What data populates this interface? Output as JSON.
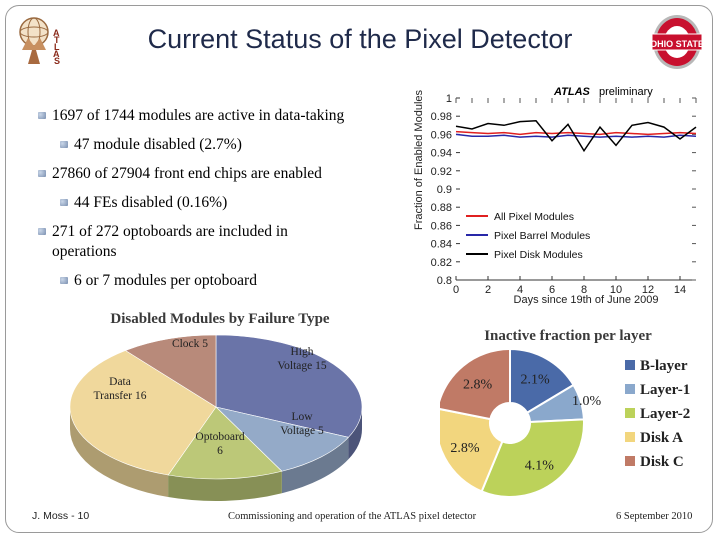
{
  "slide": {
    "title": "Current Status of the Pixel Detector",
    "atlas_logo_text": "ATLAS",
    "osu_logo_text": "OHIO STATE"
  },
  "bullets": [
    {
      "text": "1697 of 1744 modules are active in data-taking",
      "level": 1
    },
    {
      "text": "47 module disabled (2.7%)",
      "level": 2
    },
    {
      "text": "27860 of 27904 front end chips are enabled",
      "level": 1
    },
    {
      "text": "44 FEs disabled (0.16%)",
      "level": 2
    },
    {
      "text": "271 of 272 optoboards are included  in operations",
      "level": 1
    },
    {
      "text": "6 or 7 modules per optoboard",
      "level": 2
    }
  ],
  "footer": {
    "author": "J. Moss - 10",
    "center": "Commissioning and operation of the ATLAS pixel detector",
    "date": "6 September 2010"
  },
  "colors": {
    "all_modules": "#e02020",
    "barrel": "#2828a8",
    "disk": "#000000",
    "title": "#1f2a4a"
  },
  "chart_data": [
    {
      "type": "line",
      "title": "ATLAS preliminary",
      "xlabel": "Days since 19th of June 2009",
      "ylabel": "Fraction of Enabled Modules",
      "xlim": [
        0,
        15
      ],
      "ylim": [
        0.8,
        1.0
      ],
      "xticks": [
        "0",
        "2",
        "4",
        "6",
        "8",
        "10",
        "12",
        "14"
      ],
      "yticks": [
        "0.8",
        "0.82",
        "0.84",
        "0.86",
        "0.88",
        "0.9",
        "0.92",
        "0.94",
        "0.96",
        "0.98",
        "1"
      ],
      "x": [
        0,
        1,
        2,
        3,
        4,
        5,
        6,
        7,
        8,
        9,
        10,
        11,
        12,
        13,
        14,
        15
      ],
      "series": [
        {
          "name": "All Pixel Modules",
          "color": "#e02020",
          "values": [
            0.963,
            0.962,
            0.961,
            0.962,
            0.96,
            0.962,
            0.961,
            0.962,
            0.961,
            0.96,
            0.962,
            0.961,
            0.96,
            0.961,
            0.962,
            0.961
          ]
        },
        {
          "name": "Pixel Barrel Modules",
          "color": "#2828a8",
          "values": [
            0.96,
            0.958,
            0.958,
            0.959,
            0.957,
            0.958,
            0.957,
            0.959,
            0.958,
            0.957,
            0.958,
            0.957,
            0.958,
            0.957,
            0.959,
            0.958
          ]
        },
        {
          "name": "Pixel Disk Modules",
          "color": "#000000",
          "values": [
            0.969,
            0.966,
            0.972,
            0.97,
            0.974,
            0.975,
            0.953,
            0.971,
            0.942,
            0.968,
            0.948,
            0.97,
            0.973,
            0.968,
            0.955,
            0.968
          ]
        }
      ]
    },
    {
      "type": "pie",
      "title": "Disabled Modules by Failure Type",
      "slices": [
        {
          "label": "High Voltage",
          "value": 15,
          "color": "#6a74a8"
        },
        {
          "label": "Low Voltage",
          "value": 5,
          "color": "#94aac8"
        },
        {
          "label": "Optoboard",
          "value": 6,
          "color": "#bcc878"
        },
        {
          "label": "Data Transfer",
          "value": 16,
          "color": "#f0d89c"
        },
        {
          "label": "Clock",
          "value": 5,
          "color": "#b88a7a"
        }
      ]
    },
    {
      "type": "pie",
      "title": "Inactive fraction per layer",
      "slices": [
        {
          "label": "B-layer",
          "value": 2.1,
          "text": "2.1%",
          "color": "#4a6aa8"
        },
        {
          "label": "Layer-1",
          "value": 1.0,
          "text": "1.0%",
          "color": "#8aa8cc"
        },
        {
          "label": "Layer-2",
          "value": 4.1,
          "text": "4.1%",
          "color": "#bcd25a"
        },
        {
          "label": "Disk A",
          "value": 2.8,
          "text": "2.8%",
          "color": "#f2d67e"
        },
        {
          "label": "Disk C",
          "value": 2.8,
          "text": "2.8%",
          "color": "#c07a66"
        }
      ]
    }
  ]
}
